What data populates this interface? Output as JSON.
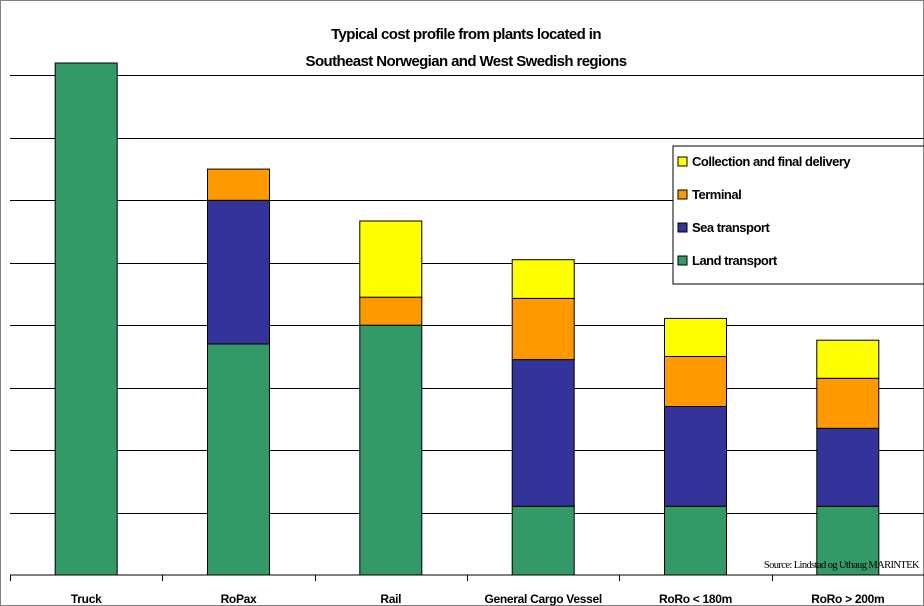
{
  "chart_data": {
    "type": "bar",
    "stacked": true,
    "title_lines": [
      "Typical cost profile from plants located in",
      "Southeast Norwegian and West Swedish regions"
    ],
    "categories": [
      "Truck",
      "RoPax",
      "Rail",
      "General Cargo Vessel",
      "RoRo < 180m",
      "RoRo > 200m"
    ],
    "ylim": [
      0,
      8.2
    ],
    "grid": true,
    "legend_position": "right",
    "series": [
      {
        "name": "Land transport",
        "color": "#339966",
        "values": [
          8.2,
          3.7,
          4.0,
          1.1,
          1.1,
          1.1
        ]
      },
      {
        "name": "Sea transport",
        "color": "#333399",
        "values": [
          0,
          2.3,
          0,
          2.35,
          1.6,
          1.25
        ]
      },
      {
        "name": "Terminal",
        "color": "#FF9900",
        "values": [
          0,
          0.5,
          0.45,
          0.98,
          0.8,
          0.8
        ]
      },
      {
        "name": "Collection and final delivery",
        "color": "#FFFF00",
        "values": [
          0,
          0,
          1.22,
          0.62,
          0.61,
          0.61
        ]
      }
    ],
    "legend_order": [
      "Collection and final delivery",
      "Terminal",
      "Sea transport",
      "Land transport"
    ],
    "source": "Source: Lindstad og Uthaug MARINTEK"
  }
}
